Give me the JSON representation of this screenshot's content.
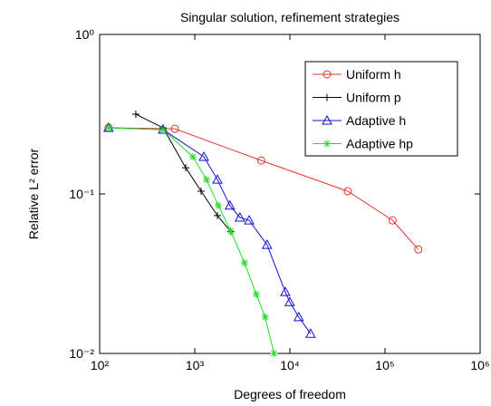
{
  "chart_data": {
    "type": "line",
    "title": "Singular solution, refinement strategies",
    "xlabel": "Degrees of freedom",
    "ylabel": "Relative L² error",
    "xscale": "log",
    "yscale": "log",
    "xlim": [
      100,
      1000000
    ],
    "ylim": [
      0.01,
      1
    ],
    "xticks": [
      {
        "value": 100,
        "label": "10²"
      },
      {
        "value": 1000,
        "label": "10³"
      },
      {
        "value": 10000,
        "label": "10⁴"
      },
      {
        "value": 100000,
        "label": "10⁵"
      },
      {
        "value": 1000000,
        "label": "10⁶"
      }
    ],
    "yticks": [
      {
        "value": 0.01,
        "label": "10⁻²"
      },
      {
        "value": 0.1,
        "label": "10⁻¹"
      },
      {
        "value": 1,
        "label": "10⁰"
      }
    ],
    "legend": "upper right",
    "series": [
      {
        "name": "Uniform h",
        "color": "#e8332a",
        "marker": "circle",
        "x": [
          124,
          617,
          5000,
          40600,
          120000,
          224000
        ],
        "values": [
          0.26,
          0.256,
          0.162,
          0.104,
          0.0683,
          0.0449
        ]
      },
      {
        "name": "Uniform p",
        "color": "#000000",
        "marker": "plus",
        "x": [
          240,
          464,
          803,
          1166,
          1730,
          2390
        ],
        "values": [
          0.316,
          0.26,
          0.146,
          0.104,
          0.0732,
          0.058
        ]
      },
      {
        "name": "Adaptive h",
        "color": "#1010d0",
        "marker": "triangle",
        "x": [
          124,
          464,
          1246,
          1730,
          2340,
          2980,
          3730,
          5750,
          8950,
          9960,
          12400,
          16500
        ],
        "values": [
          0.26,
          0.253,
          0.171,
          0.123,
          0.0846,
          0.0712,
          0.0683,
          0.048,
          0.0243,
          0.021,
          0.0169,
          0.0133
        ]
      },
      {
        "name": "Adaptive hp",
        "color": "#22dd22",
        "marker": "star",
        "x": [
          124,
          464,
          955,
          1330,
          1770,
          2390,
          3330,
          4430,
          5500,
          6810
        ],
        "values": [
          0.26,
          0.253,
          0.171,
          0.123,
          0.0846,
          0.0585,
          0.037,
          0.0235,
          0.0169,
          0.01
        ]
      }
    ]
  }
}
